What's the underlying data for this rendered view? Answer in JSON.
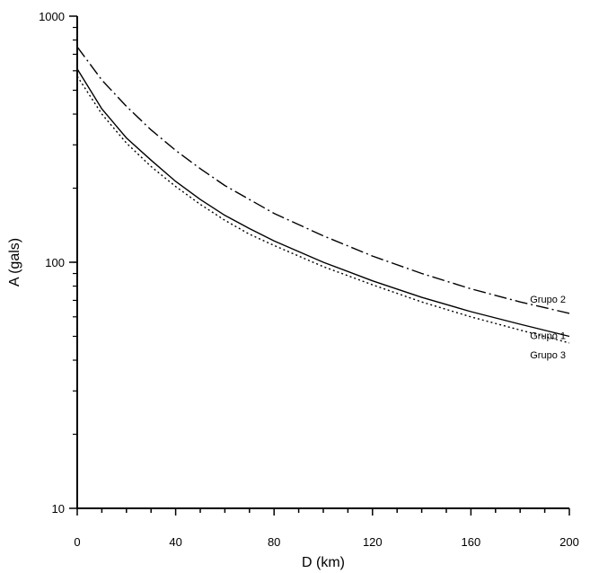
{
  "chart_data": {
    "type": "line",
    "xlabel": "D (km)",
    "ylabel": "A (gals)",
    "xlim": [
      0,
      200
    ],
    "ylim": [
      10,
      1000
    ],
    "y_scale": "log",
    "grid": false,
    "legend": "inline labels at right end of curves",
    "x_ticks": [
      "0",
      "40",
      "80",
      "120",
      "160",
      "200"
    ],
    "y_ticks": [
      "10",
      "100",
      "1000"
    ],
    "series": [
      {
        "name": "Grupo 2",
        "style": "dash-dot",
        "x": [
          0,
          10,
          20,
          30,
          40,
          50,
          60,
          70,
          80,
          100,
          120,
          140,
          160,
          180,
          200
        ],
        "y": [
          750,
          550,
          430,
          345,
          285,
          240,
          205,
          180,
          158,
          128,
          106,
          90,
          78,
          69,
          62
        ]
      },
      {
        "name": "Grupo 1",
        "style": "solid",
        "x": [
          0,
          10,
          20,
          30,
          40,
          50,
          60,
          70,
          80,
          100,
          120,
          140,
          160,
          180,
          200
        ],
        "y": [
          610,
          420,
          320,
          260,
          213,
          180,
          155,
          137,
          122,
          100,
          84,
          72,
          63,
          56,
          50
        ]
      },
      {
        "name": "Grupo 3",
        "style": "dotted",
        "x": [
          0,
          10,
          20,
          30,
          40,
          50,
          60,
          70,
          80,
          100,
          120,
          140,
          160,
          180,
          200
        ],
        "y": [
          570,
          400,
          305,
          245,
          203,
          172,
          148,
          130,
          117,
          96,
          81,
          69,
          60,
          53,
          47
        ]
      }
    ]
  }
}
